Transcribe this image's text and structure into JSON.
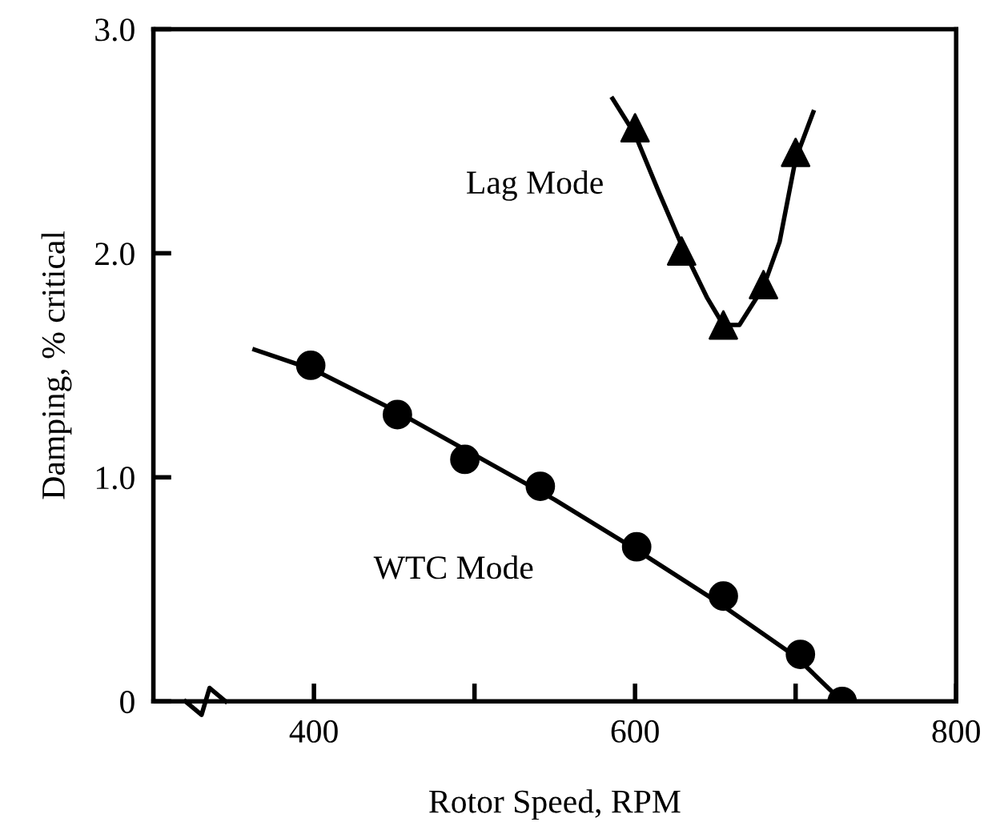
{
  "chart_data": {
    "type": "scatter",
    "xlabel": "Rotor Speed, RPM",
    "ylabel": "Damping, % critical",
    "xlim": [
      300,
      800
    ],
    "xticks": [
      400,
      {
        "value": 500,
        "label": null
      },
      600,
      {
        "value": 700,
        "label": null
      },
      800
    ],
    "ylim": [
      0,
      3.0
    ],
    "yticks": [
      0,
      {
        "value": 1.0,
        "label": "1.0"
      },
      {
        "value": 2.0,
        "label": "2.0"
      },
      {
        "value": 3.0,
        "label": "3.0"
      }
    ],
    "grid": false,
    "legend": false,
    "series": [
      {
        "type": "line",
        "color": "#000000",
        "marker": "none",
        "line_style": "solid",
        "x": [
          363,
          400,
          450,
          500,
          550,
          600,
          650,
          700,
          729
        ],
        "values": [
          1.57,
          1.48,
          1.3,
          1.1,
          0.9,
          0.68,
          0.45,
          0.2,
          0.0
        ]
      },
      {
        "name": "WTC Mode",
        "color": "#000000",
        "marker": "circle",
        "x": [
          398,
          452,
          494,
          541,
          601,
          655,
          703,
          729
        ],
        "values": [
          1.5,
          1.28,
          1.08,
          0.96,
          0.69,
          0.47,
          0.21,
          0.0
        ]
      },
      {
        "type": "line",
        "color": "#000000",
        "marker": "none",
        "line_style": "solid",
        "x": [
          586,
          600,
          615,
          630,
          645,
          655,
          665,
          680,
          690,
          700,
          711
        ],
        "values": [
          2.69,
          2.53,
          2.27,
          2.02,
          1.8,
          1.68,
          1.68,
          1.85,
          2.05,
          2.42,
          2.63
        ]
      },
      {
        "name": "Lag Mode",
        "color": "#000000",
        "marker": "triangle",
        "x": [
          600,
          629,
          655,
          680,
          700
        ],
        "values": [
          2.56,
          2.01,
          1.68,
          1.86,
          2.45
        ]
      }
    ]
  }
}
